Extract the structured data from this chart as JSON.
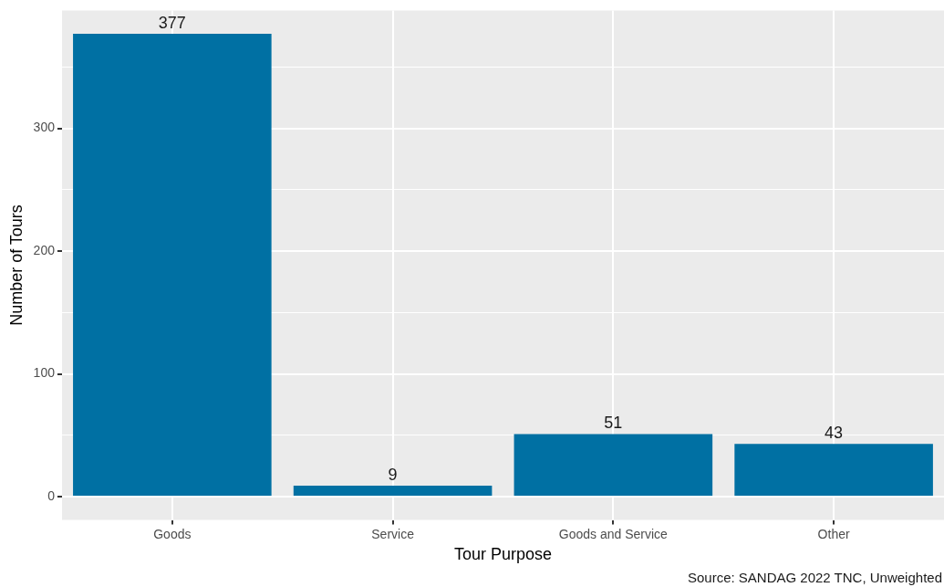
{
  "chart_data": {
    "type": "bar",
    "xlabel": "Tour Purpose",
    "ylabel": "Number of Tours",
    "categories": [
      "Goods",
      "Service",
      "Goods and Service",
      "Other"
    ],
    "values": [
      377,
      9,
      51,
      43
    ],
    "color": "#0070a3",
    "ylim": [
      -19,
      396
    ],
    "yticks": [
      0,
      {
        "value": 50,
        "label": null
      },
      100,
      {
        "value": 150,
        "label": null
      },
      200,
      {
        "value": 250,
        "label": null
      },
      300,
      {
        "value": 350,
        "label": null
      }
    ],
    "grid": true,
    "data_labels": true,
    "annotations": [
      "Source: SANDAG 2022 TNC, Unweighted"
    ]
  }
}
